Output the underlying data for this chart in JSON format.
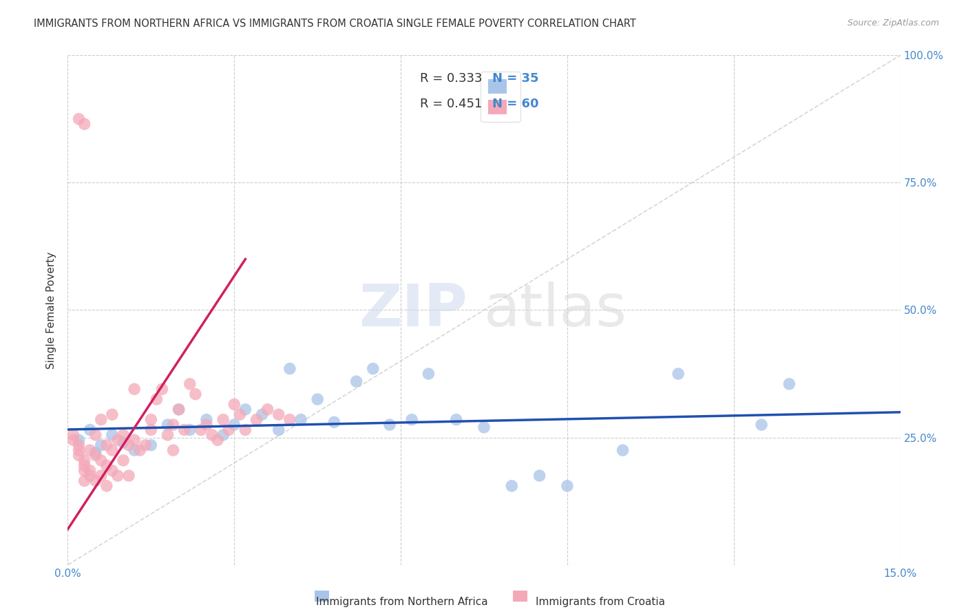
{
  "title": "IMMIGRANTS FROM NORTHERN AFRICA VS IMMIGRANTS FROM CROATIA SINGLE FEMALE POVERTY CORRELATION CHART",
  "source": "Source: ZipAtlas.com",
  "ylabel": "Single Female Poverty",
  "xlim": [
    0.0,
    0.15
  ],
  "ylim": [
    0.0,
    1.0
  ],
  "xticks": [
    0.0,
    0.03,
    0.06,
    0.09,
    0.12,
    0.15
  ],
  "yticks": [
    0.0,
    0.25,
    0.5,
    0.75,
    1.0
  ],
  "legend_label_blue": "Immigrants from Northern Africa",
  "legend_label_pink": "Immigrants from Croatia",
  "legend_r_blue": "R = 0.333",
  "legend_n_blue": "N = 35",
  "legend_r_pink": "R = 0.451",
  "legend_n_pink": "N = 60",
  "color_blue": "#a8c4e8",
  "color_pink": "#f4a8b8",
  "color_blue_line": "#2050b0",
  "color_pink_line": "#d02060",
  "color_diag_line": "#cccccc",
  "watermark_zip": "ZIP",
  "watermark_atlas": "atlas",
  "blue_scatter_x": [
    0.002,
    0.004,
    0.005,
    0.006,
    0.008,
    0.01,
    0.012,
    0.015,
    0.018,
    0.02,
    0.022,
    0.025,
    0.028,
    0.03,
    0.032,
    0.035,
    0.038,
    0.04,
    0.042,
    0.045,
    0.048,
    0.052,
    0.055,
    0.058,
    0.062,
    0.065,
    0.07,
    0.075,
    0.08,
    0.085,
    0.09,
    0.1,
    0.11,
    0.125,
    0.13
  ],
  "blue_scatter_y": [
    0.245,
    0.265,
    0.22,
    0.235,
    0.255,
    0.24,
    0.225,
    0.235,
    0.275,
    0.305,
    0.265,
    0.285,
    0.255,
    0.275,
    0.305,
    0.295,
    0.265,
    0.385,
    0.285,
    0.325,
    0.28,
    0.36,
    0.385,
    0.275,
    0.285,
    0.375,
    0.285,
    0.27,
    0.155,
    0.175,
    0.155,
    0.225,
    0.375,
    0.275,
    0.355
  ],
  "pink_scatter_x": [
    0.001,
    0.001,
    0.002,
    0.002,
    0.002,
    0.003,
    0.003,
    0.003,
    0.003,
    0.004,
    0.004,
    0.004,
    0.005,
    0.005,
    0.005,
    0.006,
    0.006,
    0.006,
    0.007,
    0.007,
    0.007,
    0.008,
    0.008,
    0.008,
    0.009,
    0.009,
    0.01,
    0.01,
    0.011,
    0.011,
    0.012,
    0.012,
    0.013,
    0.014,
    0.015,
    0.015,
    0.016,
    0.017,
    0.018,
    0.019,
    0.019,
    0.02,
    0.021,
    0.022,
    0.023,
    0.024,
    0.025,
    0.026,
    0.027,
    0.028,
    0.029,
    0.03,
    0.031,
    0.032,
    0.034,
    0.036,
    0.038,
    0.04,
    0.002,
    0.003
  ],
  "pink_scatter_y": [
    0.255,
    0.245,
    0.235,
    0.225,
    0.215,
    0.205,
    0.195,
    0.185,
    0.165,
    0.225,
    0.185,
    0.175,
    0.255,
    0.215,
    0.165,
    0.285,
    0.205,
    0.175,
    0.235,
    0.195,
    0.155,
    0.225,
    0.185,
    0.295,
    0.245,
    0.175,
    0.255,
    0.205,
    0.235,
    0.175,
    0.245,
    0.345,
    0.225,
    0.235,
    0.265,
    0.285,
    0.325,
    0.345,
    0.255,
    0.275,
    0.225,
    0.305,
    0.265,
    0.355,
    0.335,
    0.265,
    0.275,
    0.255,
    0.245,
    0.285,
    0.265,
    0.315,
    0.295,
    0.265,
    0.285,
    0.305,
    0.295,
    0.285,
    0.875,
    0.865
  ],
  "pink_trend_x0": 0.0,
  "pink_trend_y0": 0.07,
  "pink_trend_x1": 0.032,
  "pink_trend_y1": 0.6
}
